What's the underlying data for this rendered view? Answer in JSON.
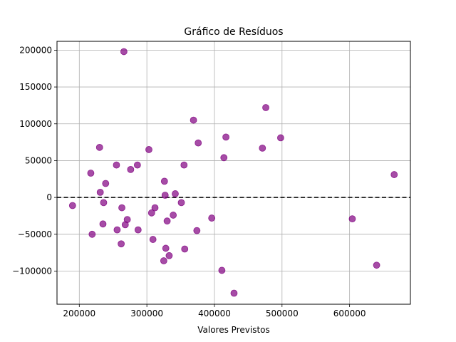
{
  "chart_data": {
    "type": "scatter",
    "title": "Gráfico de Resíduos",
    "xlabel": "Valores Previstos",
    "ylabel": "",
    "xlim": [
      167000,
      690000
    ],
    "ylim": [
      -145000,
      212000
    ],
    "xticks": [
      200000,
      300000,
      400000,
      500000,
      600000
    ],
    "yticks": [
      -100000,
      -50000,
      0,
      50000,
      100000,
      150000,
      200000
    ],
    "xtick_labels": [
      "200000",
      "300000",
      "400000",
      "500000",
      "600000"
    ],
    "ytick_labels": [
      "−100000",
      "−50000",
      "0",
      "50000",
      "100000",
      "150000",
      "200000"
    ],
    "grid": true,
    "reference_line": {
      "y": 0,
      "style": "dashed",
      "color": "#000000"
    },
    "point_color": "#800080",
    "points": [
      {
        "x": 190000,
        "y": -11000
      },
      {
        "x": 217000,
        "y": 33000
      },
      {
        "x": 219000,
        "y": -50000
      },
      {
        "x": 230000,
        "y": 68000
      },
      {
        "x": 231000,
        "y": 7000
      },
      {
        "x": 235000,
        "y": -36000
      },
      {
        "x": 236000,
        "y": -7000
      },
      {
        "x": 239000,
        "y": 19000
      },
      {
        "x": 255000,
        "y": 44000
      },
      {
        "x": 256000,
        "y": -44000
      },
      {
        "x": 262000,
        "y": -63000
      },
      {
        "x": 263000,
        "y": -14000
      },
      {
        "x": 266000,
        "y": 198000
      },
      {
        "x": 268000,
        "y": -37000
      },
      {
        "x": 271000,
        "y": -30000
      },
      {
        "x": 276000,
        "y": 38000
      },
      {
        "x": 286000,
        "y": 44000
      },
      {
        "x": 287000,
        "y": -44000
      },
      {
        "x": 303000,
        "y": 65000
      },
      {
        "x": 307000,
        "y": -21000
      },
      {
        "x": 309000,
        "y": -57000
      },
      {
        "x": 312000,
        "y": -14000
      },
      {
        "x": 325000,
        "y": -86000
      },
      {
        "x": 326000,
        "y": 22000
      },
      {
        "x": 327000,
        "y": 3000
      },
      {
        "x": 328000,
        "y": -69000
      },
      {
        "x": 330000,
        "y": -32000
      },
      {
        "x": 333000,
        "y": -79000
      },
      {
        "x": 339000,
        "y": -24000
      },
      {
        "x": 342000,
        "y": 5000
      },
      {
        "x": 351000,
        "y": -7000
      },
      {
        "x": 355000,
        "y": 44000
      },
      {
        "x": 356000,
        "y": -70000
      },
      {
        "x": 369000,
        "y": 105000
      },
      {
        "x": 374000,
        "y": -45000
      },
      {
        "x": 376000,
        "y": 74000
      },
      {
        "x": 396000,
        "y": -28000
      },
      {
        "x": 411000,
        "y": -99000
      },
      {
        "x": 414000,
        "y": 54000
      },
      {
        "x": 417000,
        "y": 82000
      },
      {
        "x": 429000,
        "y": -130000
      },
      {
        "x": 471000,
        "y": 67000
      },
      {
        "x": 476000,
        "y": 122000
      },
      {
        "x": 498000,
        "y": 81000
      },
      {
        "x": 604000,
        "y": -29000
      },
      {
        "x": 640000,
        "y": -92000
      },
      {
        "x": 666000,
        "y": 31000
      }
    ]
  }
}
